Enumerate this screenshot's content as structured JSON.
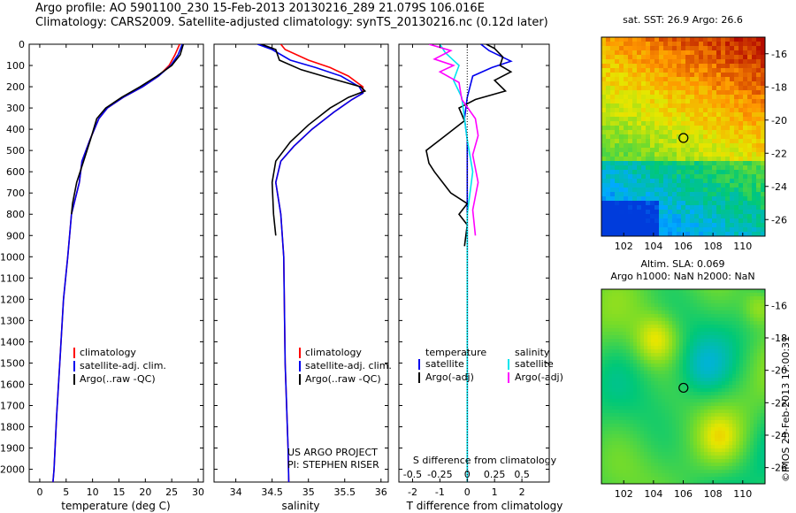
{
  "header": {
    "line1": "Argo profile: AO 5901100_230 15-Feb-2013 20130216_289 21.079S 106.016E",
    "line2": "Climatology: CARS2009. Satellite-adjusted climatology: synTS_20130216.nc (0.12d later)"
  },
  "colors": {
    "climatology": "#ff0000",
    "satellite": "#0000ee",
    "argo": "#000000",
    "sal_satellite": "#00e5ee",
    "sal_argo": "#ff00ff"
  },
  "chart_data": [
    {
      "type": "line",
      "panel": "temperature",
      "xlabel": "temperature (deg C)",
      "ylabel": "",
      "xlim": [
        -2,
        31
      ],
      "ylim": [
        2060,
        0
      ],
      "xticks": [
        0,
        5,
        10,
        15,
        20,
        25,
        30
      ],
      "yticks": [
        0,
        100,
        200,
        300,
        400,
        500,
        600,
        700,
        800,
        900,
        1000,
        1100,
        1200,
        1300,
        1400,
        1500,
        1600,
        1700,
        1800,
        1900,
        2000
      ],
      "legend": [
        "climatology",
        "satellite-adj. clim.",
        "Argo(..raw -QC)"
      ],
      "series": [
        {
          "name": "climatology",
          "color": "#ff0000",
          "x": [
            26.5,
            25.6,
            24.5,
            22.5,
            19.5,
            15.8,
            12.8,
            11.2,
            9.5,
            8.0,
            7.5,
            6.0,
            5.3,
            4.5,
            3.8,
            3.2,
            2.7,
            2.5
          ],
          "y": [
            0,
            50,
            100,
            150,
            200,
            250,
            300,
            350,
            450,
            550,
            650,
            800,
            1000,
            1200,
            1500,
            1750,
            2000,
            2060
          ]
        },
        {
          "name": "satellite-adj. clim.",
          "color": "#0000ee",
          "x": [
            27.0,
            26.2,
            24.8,
            22.5,
            19.5,
            15.8,
            12.8,
            11.2,
            9.5,
            8.0,
            7.5,
            6.0,
            5.3,
            4.5,
            3.8,
            3.2,
            2.7,
            2.5
          ],
          "y": [
            0,
            50,
            100,
            150,
            200,
            250,
            300,
            350,
            450,
            550,
            650,
            800,
            1000,
            1200,
            1500,
            1750,
            2000,
            2060
          ]
        },
        {
          "name": "Argo(..raw -QC)",
          "color": "#000000",
          "x": [
            27.2,
            26.6,
            25.0,
            22.2,
            19.0,
            15.5,
            12.5,
            10.8,
            9.6,
            8.3,
            7.0,
            6.2,
            6.0
          ],
          "y": [
            0,
            50,
            100,
            150,
            200,
            250,
            300,
            350,
            450,
            550,
            650,
            750,
            800
          ]
        }
      ]
    },
    {
      "type": "line",
      "panel": "salinity",
      "xlabel": "salinity",
      "ylabel": "",
      "xlim": [
        33.7,
        36.1
      ],
      "ylim": [
        2060,
        0
      ],
      "xticks": [
        34,
        34.5,
        35,
        35.5,
        36
      ],
      "legend": [
        "climatology",
        "satellite-adj. clim.",
        "Argo(..raw -QC)"
      ],
      "annotation": [
        "US ARGO PROJECT",
        "PI: STEPHEN RISER"
      ],
      "series": [
        {
          "name": "climatology",
          "color": "#ff0000",
          "x": [
            34.62,
            34.68,
            35.0,
            35.3,
            35.55,
            35.75,
            35.75,
            35.6,
            35.35,
            35.05,
            34.8,
            34.62,
            34.55,
            34.62,
            34.66,
            34.68,
            34.72,
            34.73
          ],
          "y": [
            0,
            25,
            75,
            110,
            150,
            200,
            230,
            260,
            320,
            400,
            480,
            550,
            650,
            800,
            1000,
            1500,
            1900,
            2060
          ]
        },
        {
          "name": "satellite-adj. clim.",
          "color": "#0000ee",
          "x": [
            34.3,
            34.5,
            34.75,
            35.1,
            35.45,
            35.7,
            35.75,
            35.6,
            35.35,
            35.05,
            34.8,
            34.62,
            34.55,
            34.62,
            34.66,
            34.68,
            34.72,
            34.73
          ],
          "y": [
            0,
            25,
            75,
            110,
            150,
            200,
            230,
            260,
            320,
            400,
            480,
            550,
            650,
            800,
            1000,
            1500,
            1900,
            2060
          ]
        },
        {
          "name": "Argo(..raw -QC)",
          "color": "#000000",
          "x": [
            34.35,
            34.55,
            34.6,
            34.9,
            35.3,
            35.72,
            35.78,
            35.55,
            35.3,
            35.0,
            34.75,
            34.55,
            34.5,
            34.52,
            34.55
          ],
          "y": [
            0,
            25,
            75,
            120,
            160,
            200,
            220,
            250,
            300,
            380,
            460,
            550,
            650,
            800,
            900
          ]
        }
      ]
    },
    {
      "type": "line",
      "panel": "difference",
      "xlabel": "T difference from climatology",
      "xlabel_top": "S difference from climatology",
      "xlim": [
        -2.5,
        3
      ],
      "ylim": [
        2060,
        0
      ],
      "xticks": [
        -2,
        -1,
        0,
        1,
        2
      ],
      "sticks_labels": [
        "-0.5",
        "-0.25",
        "0",
        "0.25",
        "0.5"
      ],
      "legend_left_title": "temperature",
      "legend_right_title": "salinity",
      "legend": [
        "satellite",
        "Argo(-adj)",
        "satellite",
        "Argo(-adj)"
      ],
      "series": [
        {
          "name": "T satellite",
          "color": "#0000ee",
          "x": [
            0.5,
            0.8,
            1.6,
            0.9,
            0.2,
            0.0,
            -0.1,
            0.0,
            0.0,
            0.0,
            0.0
          ],
          "y": [
            0,
            30,
            80,
            110,
            150,
            250,
            350,
            450,
            600,
            1000,
            2060
          ]
        },
        {
          "name": "T Argo(-adj)",
          "color": "#000000",
          "x": [
            0.7,
            1.0,
            1.3,
            1.2,
            1.6,
            1.0,
            1.4,
            0.3,
            -0.3,
            -0.1,
            -1.0,
            -1.5,
            -1.4,
            -1.2,
            -0.9,
            -0.6,
            0.0,
            -0.3,
            0.0,
            -0.1
          ],
          "y": [
            0,
            20,
            60,
            100,
            130,
            170,
            220,
            260,
            300,
            360,
            450,
            500,
            560,
            600,
            650,
            700,
            750,
            800,
            850,
            950
          ]
        },
        {
          "name": "S satellite",
          "color": "#00e5ee",
          "x": [
            -1.0,
            -0.8,
            -0.3,
            -0.5,
            -0.2,
            -0.1,
            0.0,
            0.2,
            0.0,
            0.0,
            0.0
          ],
          "y": [
            0,
            40,
            100,
            170,
            250,
            350,
            450,
            600,
            800,
            1000,
            2060
          ]
        },
        {
          "name": "S Argo(-adj)",
          "color": "#ff00ff",
          "x": [
            -1.4,
            -0.6,
            -1.2,
            -0.5,
            -1.0,
            -0.3,
            -0.2,
            0.3,
            0.4,
            0.2,
            0.4,
            0.2,
            0.3
          ],
          "y": [
            0,
            30,
            70,
            100,
            130,
            180,
            260,
            350,
            430,
            520,
            650,
            780,
            900
          ]
        }
      ]
    },
    {
      "type": "heatmap",
      "panel": "sst-map",
      "title": "sat. SST: 26.9  Argo: 26.6",
      "xlim": [
        100.5,
        111.5
      ],
      "ylim": [
        -27,
        -15
      ],
      "xticks": [
        102,
        104,
        106,
        108,
        110
      ],
      "yticks": [
        -16,
        -18,
        -20,
        -22,
        -24,
        -26
      ],
      "marker": {
        "lon": 106.016,
        "lat": -21.079
      }
    },
    {
      "type": "heatmap",
      "panel": "sla-map",
      "title": [
        "Altim. SLA: 0.069",
        "Argo h1000: NaN h2000: NaN"
      ],
      "xlim": [
        100.5,
        111.5
      ],
      "ylim": [
        -27,
        -15
      ],
      "xticks": [
        102,
        104,
        106,
        108,
        110
      ],
      "yticks": [
        -16,
        -18,
        -20,
        -22,
        -24,
        -26
      ],
      "marker": {
        "lon": 106.016,
        "lat": -21.079
      }
    }
  ],
  "footer": {
    "stamp": "©IMOS 23-Feb-2013 17:00:31"
  }
}
